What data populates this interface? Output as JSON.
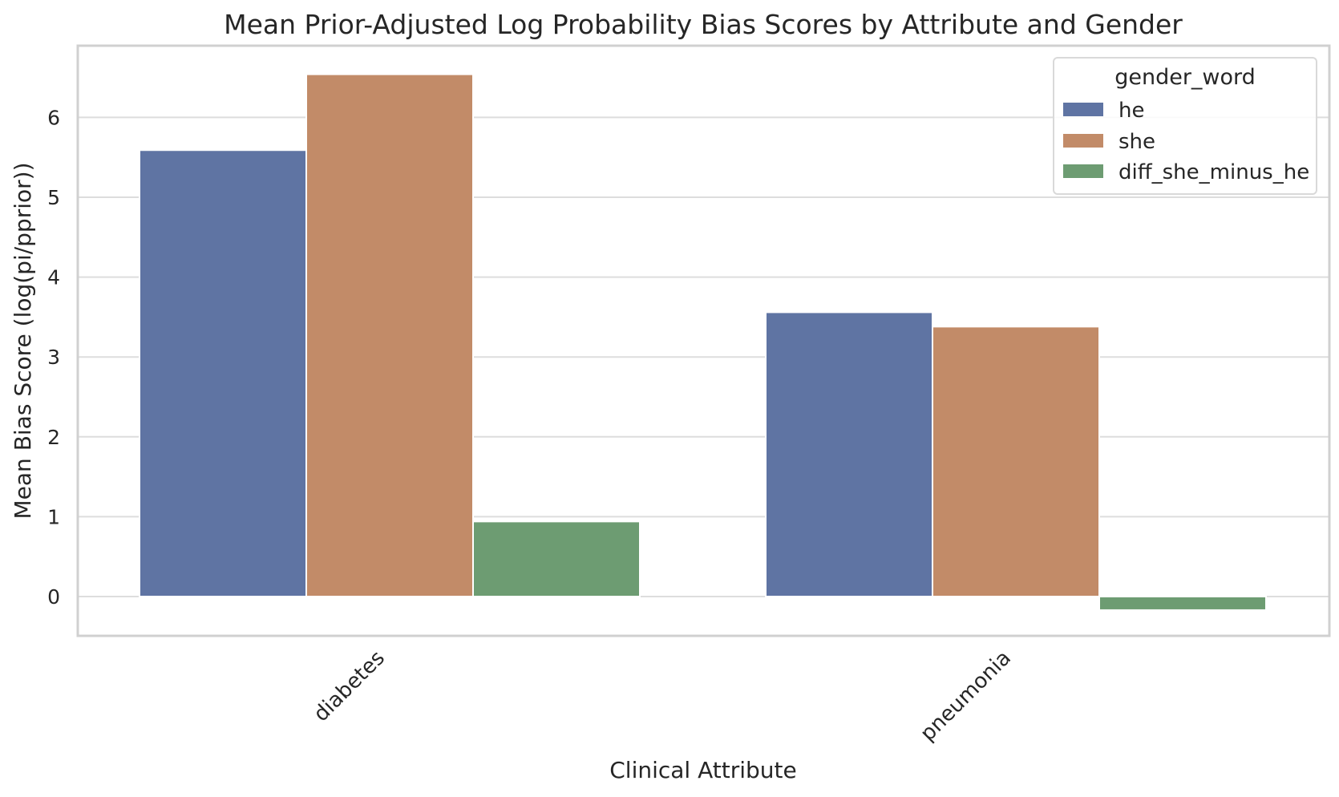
{
  "chart_data": {
    "type": "bar",
    "title": "Mean Prior-Adjusted Log Probability Bias Scores by Attribute and Gender",
    "xlabel": "Clinical Attribute",
    "ylabel": "Mean Bias Score (log(pi/pprior))",
    "categories": [
      "diabetes",
      "pneumonia"
    ],
    "series": [
      {
        "name": "he",
        "color": "#5f74a3",
        "values": [
          5.59,
          3.56
        ]
      },
      {
        "name": "she",
        "color": "#c28b68",
        "values": [
          6.54,
          3.38
        ]
      },
      {
        "name": "diff_she_minus_he",
        "color": "#6d9c72",
        "values": [
          0.94,
          -0.17
        ]
      }
    ],
    "ylim": [
      -0.5,
      6.95
    ],
    "yticks": [
      0,
      1,
      2,
      3,
      4,
      5,
      6
    ],
    "grid": true,
    "legend": {
      "title": "gender_word",
      "placement": "top-right"
    },
    "style": {
      "plot_border": "#d0d0d0",
      "grid_color": "#dddddd"
    }
  }
}
